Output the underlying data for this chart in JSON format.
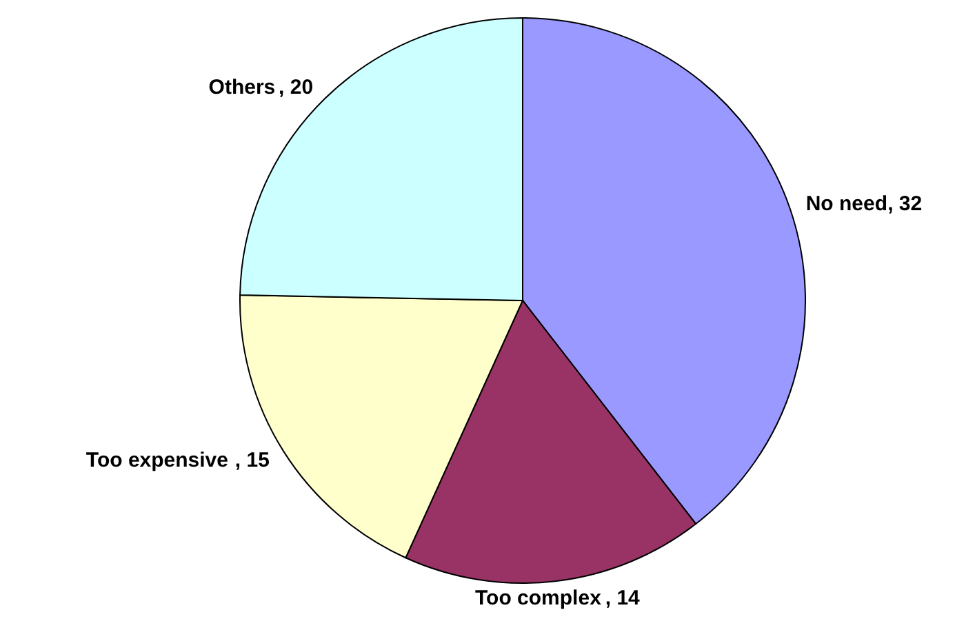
{
  "chart_data": {
    "type": "pie",
    "categories": [
      "No need",
      "Too complex",
      "Too expensive",
      "Others"
    ],
    "values": [
      32,
      14,
      15,
      20
    ],
    "colors": [
      "#9999ff",
      "#993366",
      "#ffffcc",
      "#ccffff"
    ],
    "value_labels": [
      ", 32",
      ", 14",
      ", 15",
      ", 20"
    ]
  }
}
